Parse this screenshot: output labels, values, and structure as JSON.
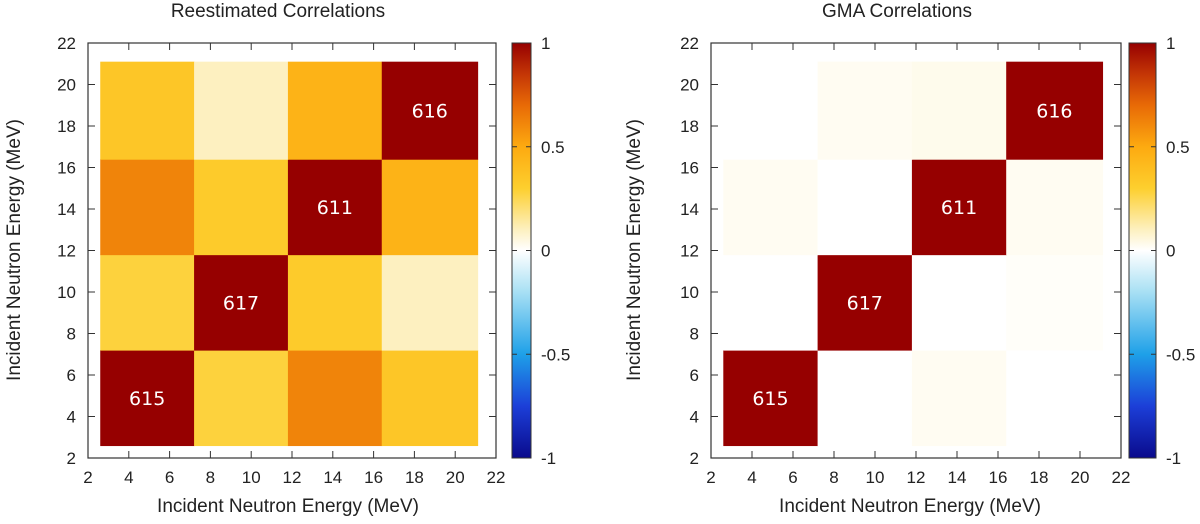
{
  "chart_data": [
    {
      "type": "heatmap",
      "title": "Reestimated Correlations",
      "xlabel": "Incident Neutron Energy (MeV)",
      "ylabel": "Incident Neutron Energy (MeV)",
      "xlim": [
        2,
        22
      ],
      "ylim": [
        2,
        22
      ],
      "xticks": [
        2,
        4,
        6,
        8,
        10,
        12,
        14,
        16,
        18,
        20,
        22
      ],
      "yticks": [
        2,
        4,
        6,
        8,
        10,
        12,
        14,
        16,
        18,
        20,
        22
      ],
      "bin_edges": [
        2.6,
        7.2,
        11.8,
        16.4,
        21.1
      ],
      "values": [
        [
          1.0,
          0.28,
          0.62,
          0.35
        ],
        [
          0.28,
          1.0,
          0.32,
          0.1
        ],
        [
          0.62,
          0.32,
          1.0,
          0.45
        ],
        [
          0.35,
          0.1,
          0.45,
          1.0
        ]
      ],
      "cell_labels": [
        {
          "row": 0,
          "col": 0,
          "text": "615"
        },
        {
          "row": 1,
          "col": 1,
          "text": "617"
        },
        {
          "row": 2,
          "col": 2,
          "text": "611"
        },
        {
          "row": 3,
          "col": 3,
          "text": "616"
        }
      ],
      "colorbar": {
        "range": [
          -1,
          1
        ],
        "ticks": [
          "1",
          "0.5",
          "0",
          "-0.5",
          "-1"
        ]
      }
    },
    {
      "type": "heatmap",
      "title": "GMA Correlations",
      "xlabel": "Incident Neutron Energy (MeV)",
      "ylabel": "Incident Neutron Energy (MeV)",
      "xlim": [
        2,
        22
      ],
      "ylim": [
        2,
        22
      ],
      "xticks": [
        2,
        4,
        6,
        8,
        10,
        12,
        14,
        16,
        18,
        20,
        22
      ],
      "yticks": [
        2,
        4,
        6,
        8,
        10,
        12,
        14,
        16,
        18,
        20,
        22
      ],
      "bin_edges": [
        2.6,
        7.2,
        11.8,
        16.4,
        21.1
      ],
      "values": [
        [
          1.0,
          0.0,
          0.02,
          0.0
        ],
        [
          0.0,
          1.0,
          0.0,
          0.01
        ],
        [
          0.02,
          0.0,
          1.0,
          0.02
        ],
        [
          0.0,
          0.02,
          0.03,
          1.0
        ]
      ],
      "cell_labels": [
        {
          "row": 0,
          "col": 0,
          "text": "615"
        },
        {
          "row": 1,
          "col": 1,
          "text": "617"
        },
        {
          "row": 2,
          "col": 2,
          "text": "611"
        },
        {
          "row": 3,
          "col": 3,
          "text": "616"
        }
      ],
      "colorbar": {
        "range": [
          -1,
          1
        ],
        "ticks": [
          "1",
          "0.5",
          "0",
          "-0.5",
          "-1"
        ]
      }
    }
  ],
  "colorscale": {
    "stops": [
      {
        "v": -1.0,
        "color": "#0a0a8c"
      },
      {
        "v": -0.75,
        "color": "#1c3fd8"
      },
      {
        "v": -0.5,
        "color": "#1ea0e8"
      },
      {
        "v": -0.2,
        "color": "#a8e0f4"
      },
      {
        "v": 0.0,
        "color": "#ffffff"
      },
      {
        "v": 0.1,
        "color": "#fdf0c0"
      },
      {
        "v": 0.3,
        "color": "#fdcf2e"
      },
      {
        "v": 0.5,
        "color": "#fdaa10"
      },
      {
        "v": 0.7,
        "color": "#e86a06"
      },
      {
        "v": 0.85,
        "color": "#c43606"
      },
      {
        "v": 1.0,
        "color": "#960000"
      }
    ]
  }
}
